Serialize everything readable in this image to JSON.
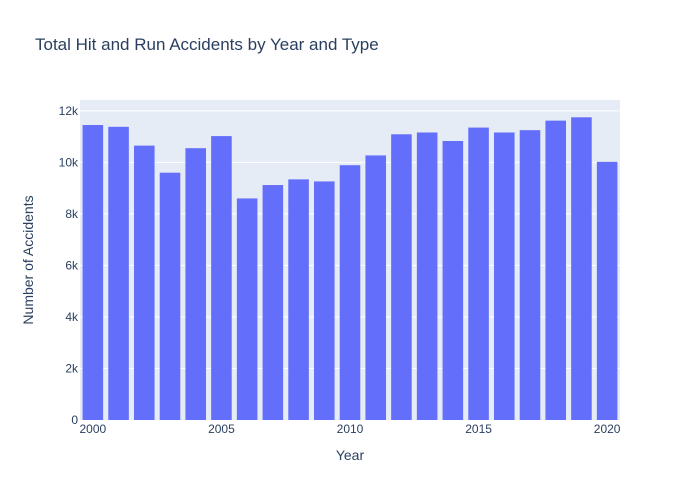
{
  "chart_data": {
    "type": "bar",
    "title": "Total Hit and Run Accidents by Year and Type",
    "xlabel": "Year",
    "ylabel": "Number of Accidents",
    "x": [
      2000,
      2001,
      2002,
      2003,
      2004,
      2005,
      2006,
      2007,
      2008,
      2009,
      2010,
      2011,
      2012,
      2013,
      2014,
      2015,
      2016,
      2017,
      2018,
      2019,
      2020
    ],
    "values": [
      11450,
      11380,
      10650,
      9600,
      10550,
      11020,
      8600,
      9120,
      9340,
      9260,
      9890,
      10270,
      11090,
      11160,
      10830,
      11350,
      11160,
      11250,
      11620,
      11750,
      10020
    ],
    "xticks": [
      2000,
      2005,
      2010,
      2015,
      2020
    ],
    "xtick_labels": [
      "2000",
      "2005",
      "2010",
      "2015",
      "2020"
    ],
    "yticks": [
      0,
      2000,
      4000,
      6000,
      8000,
      10000,
      12000
    ],
    "ytick_labels": [
      "0",
      "2k",
      "4k",
      "6k",
      "8k",
      "10k",
      "12k"
    ],
    "xlim": [
      1999.5,
      2020.5
    ],
    "ylim": [
      0,
      12421
    ],
    "grid": true,
    "legend": "none",
    "colors": {
      "bar": "#636efa",
      "plot_bg": "#e5ecf6",
      "grid": "#ffffff",
      "text": "#2a3f5f"
    }
  }
}
